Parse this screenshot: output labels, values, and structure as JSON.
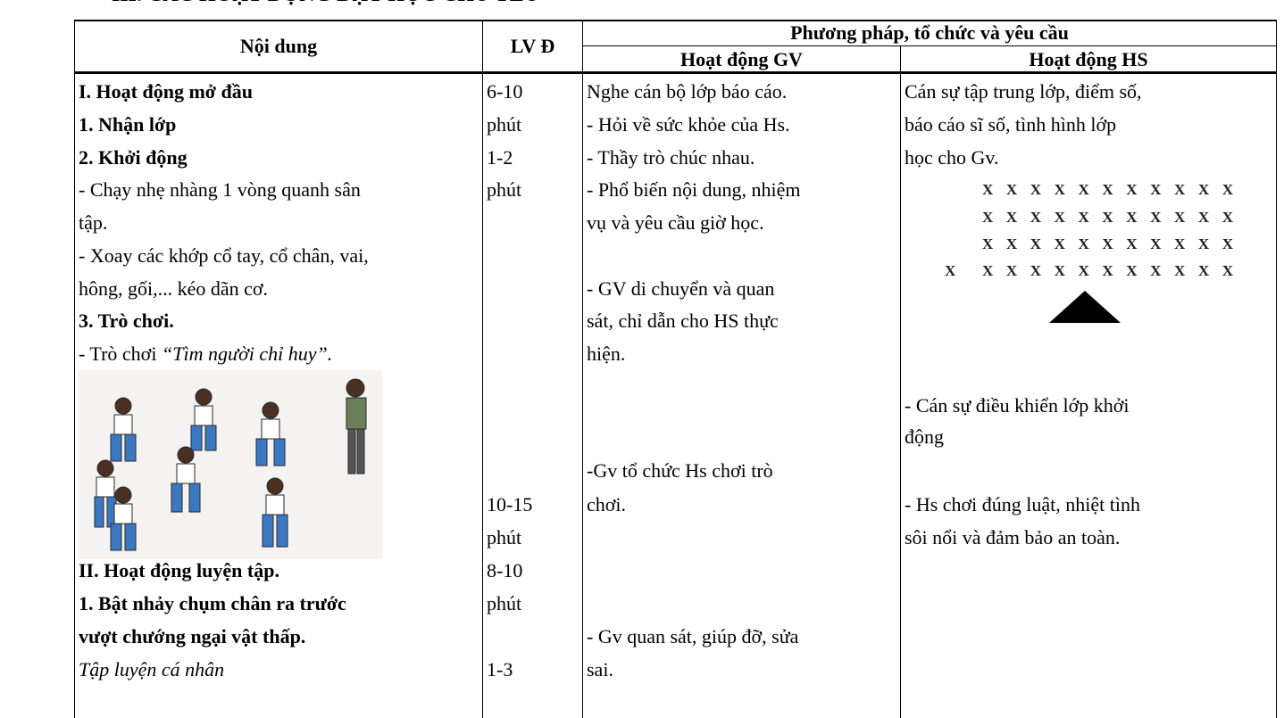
{
  "heading": "III. CÁC HOẠT ĐỘNG DẠY HỌC CHỦ YẾU",
  "table": {
    "header": {
      "content": "Nội dung",
      "time": "LV Đ",
      "methods": "Phương pháp, tổ chức và yêu cầu",
      "teacher": "Hoạt động GV",
      "students": "Hoạt động HS"
    },
    "content": [
      "I. Hoạt động mở đầu",
      "1. Nhận lớp",
      "2. Khởi động",
      "- Chạy nhẹ nhàng 1 vòng quanh sân",
      "tập.",
      "- Xoay các khớp cổ tay, cổ chân, vai,",
      "hông, gối,... kéo dãn cơ.",
      "3. Trò chơi.",
      [
        "- Trò chơi",
        "“Tìm người chỉ huy”."
      ],
      "II. Hoạt động luyện tập.",
      "1. Bật nhảy chụm chân ra trước",
      "vượt chướng ngại vật thấp.",
      "Tập luyện cá nhân"
    ],
    "time": [
      "6-10",
      "phút",
      "1-2",
      "phút",
      "10-15",
      "phút",
      "8-10",
      "phút",
      "1-3"
    ],
    "teacher": [
      "Nghe cán bộ lớp báo cáo.",
      "- Hỏi về sức khỏe của Hs.",
      "- Thầy trò chúc nhau.",
      "- Phổ biến nội dung, nhiệm",
      "vụ và yêu cầu giờ học.",
      "- GV di chuyển và quan",
      "sát, chỉ dẫn cho HS thực",
      "hiện.",
      "-Gv tổ chức Hs chơi trò",
      "chơi.",
      "- Gv quan sát, giúp đỡ, sửa",
      "sai."
    ],
    "students": [
      "Cán sự tập trung lớp, điểm số,",
      "báo cáo sĩ số, tình hình lớp",
      "học cho Gv.",
      "- Cán sự điều khiển lớp khởi",
      "động",
      "- Hs chơi đúng luật, nhiệt tình",
      "sôi nổi và đảm bảo an toàn."
    ],
    "formation": [
      "XXXXXXXXXXX",
      "XXXXXXXXXXX",
      "XXXXXXXXXXX",
      "X",
      "XXXXXXXXXXX"
    ]
  }
}
